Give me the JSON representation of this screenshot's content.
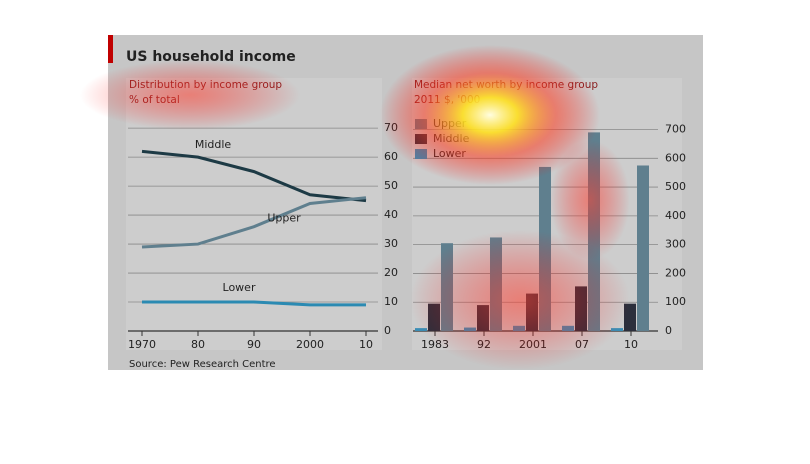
{
  "title": "US household income",
  "source": "Source: Pew Research Centre",
  "chart_data": [
    {
      "type": "line",
      "title": "Distribution by income group",
      "subtitle": "% of total",
      "categories": [
        "1970",
        "80",
        "90",
        "2000",
        "10"
      ],
      "series": [
        {
          "name": "Middle",
          "color": "#1d3a45",
          "values": [
            62,
            60,
            55,
            47,
            45
          ]
        },
        {
          "name": "Upper",
          "color": "#5f7f8e",
          "values": [
            29,
            30,
            36,
            44,
            46
          ]
        },
        {
          "name": "Lower",
          "color": "#2b8ab2",
          "values": [
            10,
            10,
            10,
            9,
            9
          ]
        }
      ],
      "ylim": [
        0,
        73.5
      ],
      "yticks": [
        0,
        10,
        20,
        30,
        40,
        50,
        60,
        70
      ],
      "grid": true
    },
    {
      "type": "bar",
      "title": "Median net worth by income group",
      "subtitle": "2011 $, '000",
      "categories": [
        "1983",
        "92",
        "2001",
        "07",
        "10"
      ],
      "series": [
        {
          "name": "Upper",
          "color": "#5f7f8e",
          "values": [
            305,
            325,
            570,
            690,
            575
          ]
        },
        {
          "name": "Middle",
          "color": "#2c2f3c",
          "values": [
            95,
            90,
            130,
            155,
            95
          ]
        },
        {
          "name": "Lower",
          "color": "#3a8db5",
          "values": [
            10,
            12,
            18,
            18,
            10
          ]
        }
      ],
      "ylim": [
        0,
        740
      ],
      "yticks": [
        0,
        100,
        200,
        300,
        400,
        500,
        600,
        700
      ],
      "grid": true,
      "legend": "top-left"
    }
  ]
}
